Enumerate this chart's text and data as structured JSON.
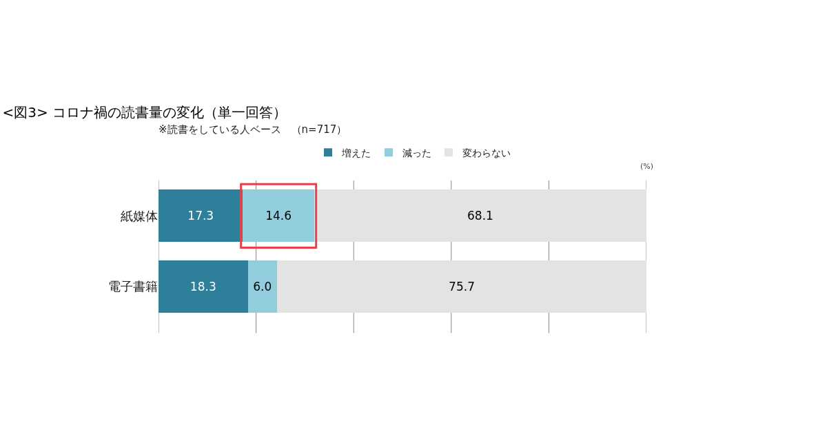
{
  "chart_data": {
    "type": "bar",
    "orientation": "horizontal",
    "stacked": true,
    "title": "<図3> コロナ禍の読書量の変化（単一回答）",
    "subtitle": "※読書をしている人ベース　（n=717）",
    "categories": [
      "紙媒体",
      "電子書籍"
    ],
    "series": [
      {
        "name": "増えた",
        "color": "#2e7f99",
        "values": [
          17.3,
          18.3
        ],
        "value_labels": [
          "17.3",
          "18.3"
        ]
      },
      {
        "name": "減った",
        "color": "#92cddd",
        "values": [
          14.6,
          6.0
        ],
        "value_labels": [
          "14.6",
          "6.0"
        ]
      },
      {
        "name": "変わらない",
        "color": "#e3e3e3",
        "values": [
          68.1,
          75.7
        ],
        "value_labels": [
          "68.1",
          "75.7"
        ]
      }
    ],
    "xlim": [
      0,
      100
    ],
    "xticks": [
      {
        "value": 0,
        "label": null
      },
      {
        "value": 20,
        "label": null
      },
      {
        "value": 40,
        "label": null
      },
      {
        "value": 60,
        "label": null
      },
      {
        "value": 80,
        "label": null
      },
      {
        "value": 100,
        "label": null
      }
    ],
    "annotations": [
      "(%)"
    ],
    "grid": "x",
    "legend": "top",
    "tick_labels": "y"
  }
}
